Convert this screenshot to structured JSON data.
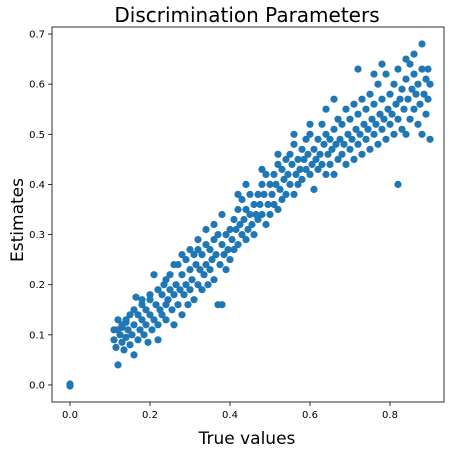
{
  "chart_data": {
    "type": "scatter",
    "title": "Discrimination Parameters",
    "xlabel": "True values",
    "ylabel": "Estimates",
    "xlim": [
      -0.045,
      0.935
    ],
    "ylim": [
      -0.034,
      0.714
    ],
    "xticks": [
      0.0,
      0.2,
      0.4,
      0.6,
      0.8
    ],
    "xtick_labels": [
      "0.0",
      "0.2",
      "0.4",
      "0.6",
      "0.8"
    ],
    "yticks": [
      0.0,
      0.1,
      0.2,
      0.3,
      0.4,
      0.5,
      0.6,
      0.7
    ],
    "ytick_labels": [
      "0.0",
      "0.1",
      "0.2",
      "0.3",
      "0.4",
      "0.5",
      "0.6",
      "0.7"
    ],
    "grid": false,
    "legend": "none",
    "marker_color": "#1f77b4",
    "marker": "filled-circle",
    "series": [
      {
        "points": [
          [
            0.0,
            0.0
          ],
          [
            0.0,
            0.002
          ],
          [
            0.0,
            -0.002
          ],
          [
            0.11,
            0.09
          ],
          [
            0.11,
            0.11
          ],
          [
            0.115,
            0.075
          ],
          [
            0.12,
            0.04
          ],
          [
            0.12,
            0.13
          ],
          [
            0.125,
            0.1
          ],
          [
            0.13,
            0.085
          ],
          [
            0.13,
            0.115
          ],
          [
            0.135,
            0.07
          ],
          [
            0.14,
            0.095
          ],
          [
            0.14,
            0.125
          ],
          [
            0.145,
            0.11
          ],
          [
            0.15,
            0.08
          ],
          [
            0.15,
            0.14
          ],
          [
            0.155,
            0.1
          ],
          [
            0.16,
            0.06
          ],
          [
            0.16,
            0.12
          ],
          [
            0.165,
            0.175
          ],
          [
            0.17,
            0.09
          ],
          [
            0.17,
            0.14
          ],
          [
            0.175,
            0.11
          ],
          [
            0.18,
            0.13
          ],
          [
            0.18,
            0.16
          ],
          [
            0.185,
            0.1
          ],
          [
            0.19,
            0.12
          ],
          [
            0.19,
            0.15
          ],
          [
            0.195,
            0.085
          ],
          [
            0.2,
            0.14
          ],
          [
            0.2,
            0.17
          ],
          [
            0.205,
            0.11
          ],
          [
            0.21,
            0.13
          ],
          [
            0.21,
            0.22
          ],
          [
            0.215,
            0.16
          ],
          [
            0.22,
            0.09
          ],
          [
            0.22,
            0.12
          ],
          [
            0.225,
            0.15
          ],
          [
            0.23,
            0.18
          ],
          [
            0.23,
            0.14
          ],
          [
            0.235,
            0.2
          ],
          [
            0.24,
            0.16
          ],
          [
            0.24,
            0.13
          ],
          [
            0.245,
            0.17
          ],
          [
            0.25,
            0.19
          ],
          [
            0.25,
            0.22
          ],
          [
            0.255,
            0.15
          ],
          [
            0.26,
            0.18
          ],
          [
            0.26,
            0.12
          ],
          [
            0.265,
            0.2
          ],
          [
            0.27,
            0.16
          ],
          [
            0.27,
            0.24
          ],
          [
            0.275,
            0.19
          ],
          [
            0.28,
            0.14
          ],
          [
            0.28,
            0.22
          ],
          [
            0.285,
            0.18
          ],
          [
            0.29,
            0.25
          ],
          [
            0.29,
            0.2
          ],
          [
            0.295,
            0.16
          ],
          [
            0.3,
            0.23
          ],
          [
            0.3,
            0.19
          ],
          [
            0.305,
            0.21
          ],
          [
            0.31,
            0.26
          ],
          [
            0.31,
            0.17
          ],
          [
            0.315,
            0.24
          ],
          [
            0.32,
            0.2
          ],
          [
            0.32,
            0.27
          ],
          [
            0.325,
            0.23
          ],
          [
            0.33,
            0.19
          ],
          [
            0.33,
            0.26
          ],
          [
            0.335,
            0.22
          ],
          [
            0.34,
            0.28
          ],
          [
            0.34,
            0.24
          ],
          [
            0.345,
            0.2
          ],
          [
            0.35,
            0.27
          ],
          [
            0.35,
            0.23
          ],
          [
            0.355,
            0.25
          ],
          [
            0.36,
            0.29
          ],
          [
            0.36,
            0.21
          ],
          [
            0.365,
            0.26
          ],
          [
            0.37,
            0.16
          ],
          [
            0.37,
            0.3
          ],
          [
            0.375,
            0.24
          ],
          [
            0.38,
            0.28
          ],
          [
            0.38,
            0.16
          ],
          [
            0.385,
            0.26
          ],
          [
            0.39,
            0.3
          ],
          [
            0.39,
            0.23
          ],
          [
            0.395,
            0.27
          ],
          [
            0.4,
            0.31
          ],
          [
            0.4,
            0.25
          ],
          [
            0.405,
            0.29
          ],
          [
            0.41,
            0.33
          ],
          [
            0.41,
            0.27
          ],
          [
            0.415,
            0.31
          ],
          [
            0.42,
            0.35
          ],
          [
            0.42,
            0.28
          ],
          [
            0.425,
            0.32
          ],
          [
            0.43,
            0.3
          ],
          [
            0.43,
            0.37
          ],
          [
            0.435,
            0.33
          ],
          [
            0.44,
            0.29
          ],
          [
            0.44,
            0.35
          ],
          [
            0.445,
            0.31
          ],
          [
            0.45,
            0.34
          ],
          [
            0.45,
            0.38
          ],
          [
            0.455,
            0.32
          ],
          [
            0.46,
            0.36
          ],
          [
            0.46,
            0.3
          ],
          [
            0.465,
            0.34
          ],
          [
            0.47,
            0.38
          ],
          [
            0.47,
            0.33
          ],
          [
            0.475,
            0.36
          ],
          [
            0.48,
            0.4
          ],
          [
            0.48,
            0.34
          ],
          [
            0.485,
            0.38
          ],
          [
            0.49,
            0.32
          ],
          [
            0.49,
            0.42
          ],
          [
            0.495,
            0.36
          ],
          [
            0.5,
            0.4
          ],
          [
            0.5,
            0.34
          ],
          [
            0.505,
            0.38
          ],
          [
            0.51,
            0.42
          ],
          [
            0.51,
            0.36
          ],
          [
            0.515,
            0.4
          ],
          [
            0.52,
            0.44
          ],
          [
            0.52,
            0.35
          ],
          [
            0.525,
            0.39
          ],
          [
            0.53,
            0.43
          ],
          [
            0.53,
            0.37
          ],
          [
            0.535,
            0.41
          ],
          [
            0.54,
            0.45
          ],
          [
            0.54,
            0.38
          ],
          [
            0.545,
            0.42
          ],
          [
            0.55,
            0.46
          ],
          [
            0.55,
            0.4
          ],
          [
            0.555,
            0.44
          ],
          [
            0.56,
            0.38
          ],
          [
            0.56,
            0.48
          ],
          [
            0.565,
            0.42
          ],
          [
            0.57,
            0.45
          ],
          [
            0.57,
            0.4
          ],
          [
            0.575,
            0.43
          ],
          [
            0.58,
            0.47
          ],
          [
            0.58,
            0.41
          ],
          [
            0.585,
            0.45
          ],
          [
            0.59,
            0.49
          ],
          [
            0.59,
            0.43
          ],
          [
            0.595,
            0.46
          ],
          [
            0.6,
            0.42
          ],
          [
            0.6,
            0.5
          ],
          [
            0.605,
            0.44
          ],
          [
            0.61,
            0.47
          ],
          [
            0.61,
            0.39
          ],
          [
            0.615,
            0.45
          ],
          [
            0.62,
            0.49
          ],
          [
            0.62,
            0.43
          ],
          [
            0.625,
            0.46
          ],
          [
            0.63,
            0.52
          ],
          [
            0.63,
            0.44
          ],
          [
            0.635,
            0.48
          ],
          [
            0.64,
            0.42
          ],
          [
            0.64,
            0.5
          ],
          [
            0.645,
            0.46
          ],
          [
            0.65,
            0.49
          ],
          [
            0.65,
            0.44
          ],
          [
            0.655,
            0.47
          ],
          [
            0.66,
            0.51
          ],
          [
            0.66,
            0.42
          ],
          [
            0.665,
            0.48
          ],
          [
            0.67,
            0.45
          ],
          [
            0.67,
            0.53
          ],
          [
            0.675,
            0.49
          ],
          [
            0.68,
            0.46
          ],
          [
            0.68,
            0.52
          ],
          [
            0.685,
            0.48
          ],
          [
            0.69,
            0.44
          ],
          [
            0.69,
            0.55
          ],
          [
            0.695,
            0.5
          ],
          [
            0.7,
            0.47
          ],
          [
            0.7,
            0.53
          ],
          [
            0.705,
            0.49
          ],
          [
            0.71,
            0.45
          ],
          [
            0.71,
            0.56
          ],
          [
            0.715,
            0.51
          ],
          [
            0.72,
            0.48
          ],
          [
            0.72,
            0.54
          ],
          [
            0.725,
            0.5
          ],
          [
            0.73,
            0.46
          ],
          [
            0.73,
            0.57
          ],
          [
            0.735,
            0.52
          ],
          [
            0.74,
            0.49
          ],
          [
            0.74,
            0.55
          ],
          [
            0.745,
            0.51
          ],
          [
            0.75,
            0.47
          ],
          [
            0.75,
            0.58
          ],
          [
            0.755,
            0.53
          ],
          [
            0.76,
            0.5
          ],
          [
            0.76,
            0.56
          ],
          [
            0.765,
            0.52
          ],
          [
            0.77,
            0.48
          ],
          [
            0.77,
            0.6
          ],
          [
            0.775,
            0.54
          ],
          [
            0.78,
            0.51
          ],
          [
            0.78,
            0.57
          ],
          [
            0.785,
            0.53
          ],
          [
            0.79,
            0.49
          ],
          [
            0.79,
            0.62
          ],
          [
            0.795,
            0.55
          ],
          [
            0.8,
            0.52
          ],
          [
            0.8,
            0.58
          ],
          [
            0.805,
            0.54
          ],
          [
            0.81,
            0.5
          ],
          [
            0.81,
            0.6
          ],
          [
            0.815,
            0.56
          ],
          [
            0.82,
            0.53
          ],
          [
            0.82,
            0.63
          ],
          [
            0.825,
            0.57
          ],
          [
            0.83,
            0.51
          ],
          [
            0.83,
            0.59
          ],
          [
            0.835,
            0.55
          ],
          [
            0.84,
            0.61
          ],
          [
            0.84,
            0.5
          ],
          [
            0.845,
            0.57
          ],
          [
            0.85,
            0.53
          ],
          [
            0.85,
            0.64
          ],
          [
            0.855,
            0.59
          ],
          [
            0.86,
            0.55
          ],
          [
            0.86,
            0.62
          ],
          [
            0.865,
            0.58
          ],
          [
            0.87,
            0.52
          ],
          [
            0.87,
            0.6
          ],
          [
            0.875,
            0.56
          ],
          [
            0.88,
            0.63
          ],
          [
            0.88,
            0.68
          ],
          [
            0.885,
            0.58
          ],
          [
            0.89,
            0.54
          ],
          [
            0.89,
            0.61
          ],
          [
            0.895,
            0.57
          ],
          [
            0.9,
            0.6
          ],
          [
            0.9,
            0.49
          ],
          [
            0.895,
            0.63
          ],
          [
            0.88,
            0.5
          ],
          [
            0.86,
            0.66
          ],
          [
            0.84,
            0.65
          ],
          [
            0.82,
            0.4
          ],
          [
            0.78,
            0.64
          ],
          [
            0.76,
            0.62
          ],
          [
            0.72,
            0.63
          ],
          [
            0.66,
            0.57
          ],
          [
            0.64,
            0.55
          ],
          [
            0.6,
            0.52
          ],
          [
            0.56,
            0.5
          ],
          [
            0.52,
            0.46
          ],
          [
            0.48,
            0.43
          ],
          [
            0.44,
            0.4
          ],
          [
            0.42,
            0.38
          ],
          [
            0.38,
            0.34
          ],
          [
            0.36,
            0.32
          ],
          [
            0.34,
            0.31
          ],
          [
            0.32,
            0.29
          ],
          [
            0.3,
            0.27
          ],
          [
            0.28,
            0.26
          ],
          [
            0.26,
            0.24
          ],
          [
            0.24,
            0.21
          ],
          [
            0.22,
            0.19
          ],
          [
            0.2,
            0.18
          ],
          [
            0.18,
            0.17
          ],
          [
            0.16,
            0.15
          ],
          [
            0.14,
            0.13
          ],
          [
            0.13,
            0.12
          ],
          [
            0.12,
            0.11
          ]
        ]
      }
    ]
  }
}
